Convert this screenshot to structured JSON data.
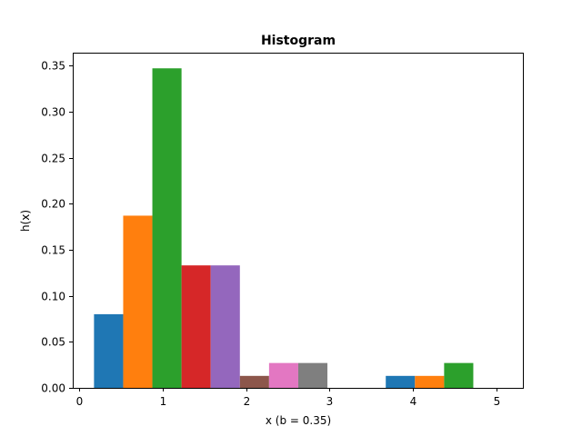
{
  "chart_data": {
    "type": "bar",
    "title": "Histogram",
    "xlabel": "x (b = 0.35)",
    "ylabel": "h(x)",
    "bin_width": 0.35,
    "xlim": [
      -0.08,
      5.32
    ],
    "ylim": [
      0,
      0.364
    ],
    "xticks": [
      0,
      1,
      2,
      3,
      4,
      5
    ],
    "yticks": [
      0.0,
      0.05,
      0.1,
      0.15,
      0.2,
      0.25,
      0.3,
      0.35
    ],
    "ytick_labels": [
      "0.00",
      "0.05",
      "0.10",
      "0.15",
      "0.20",
      "0.25",
      "0.30",
      "0.35"
    ],
    "bins": [
      {
        "left": 0.175,
        "value": 0.08,
        "color": "#1f77b4"
      },
      {
        "left": 0.525,
        "value": 0.187,
        "color": "#ff7f0e"
      },
      {
        "left": 0.875,
        "value": 0.347,
        "color": "#2ca02c"
      },
      {
        "left": 1.225,
        "value": 0.133,
        "color": "#d62728"
      },
      {
        "left": 1.575,
        "value": 0.133,
        "color": "#9467bd"
      },
      {
        "left": 1.925,
        "value": 0.013,
        "color": "#8c564b"
      },
      {
        "left": 2.275,
        "value": 0.027,
        "color": "#e377c2"
      },
      {
        "left": 2.625,
        "value": 0.027,
        "color": "#7f7f7f"
      },
      {
        "left": 2.975,
        "value": 0.0,
        "color": "#bcbd22"
      },
      {
        "left": 3.325,
        "value": 0.0,
        "color": "#17becf"
      },
      {
        "left": 3.675,
        "value": 0.013,
        "color": "#1f77b4"
      },
      {
        "left": 4.025,
        "value": 0.013,
        "color": "#ff7f0e"
      },
      {
        "left": 4.375,
        "value": 0.027,
        "color": "#2ca02c"
      }
    ]
  }
}
